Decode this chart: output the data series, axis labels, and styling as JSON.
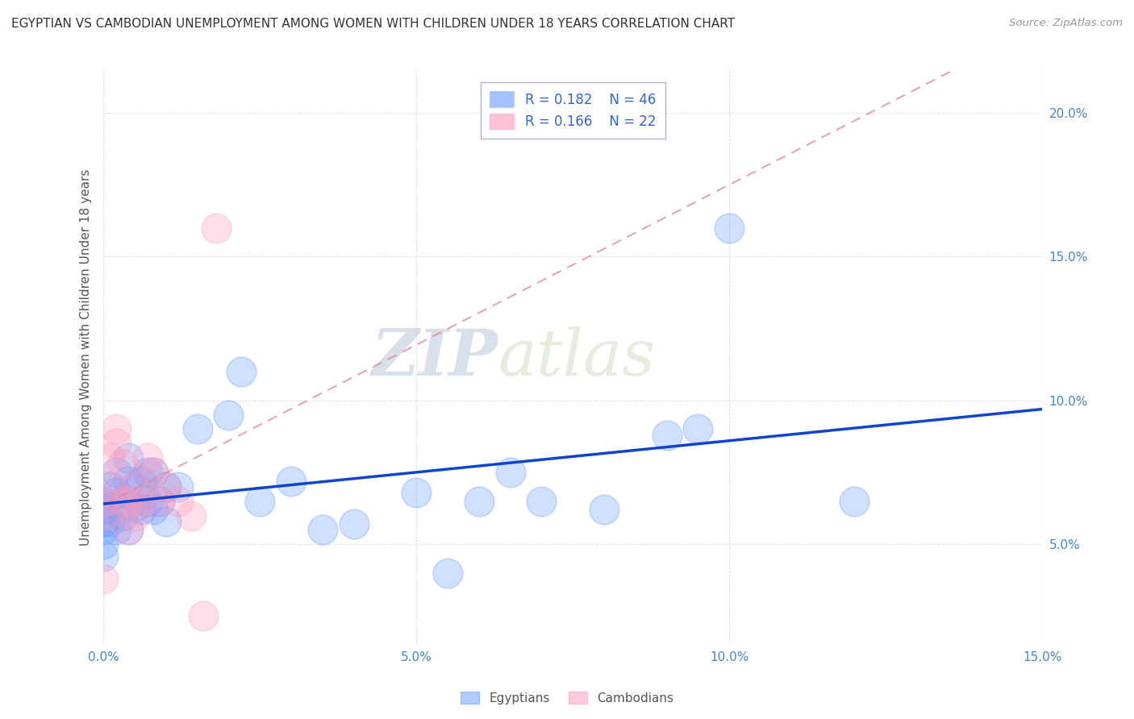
{
  "title": "EGYPTIAN VS CAMBODIAN UNEMPLOYMENT AMONG WOMEN WITH CHILDREN UNDER 18 YEARS CORRELATION CHART",
  "source": "Source: ZipAtlas.com",
  "ylabel": "Unemployment Among Women with Children Under 18 years",
  "xlim": [
    0.0,
    0.15
  ],
  "ylim": [
    0.015,
    0.215
  ],
  "yticks": [
    0.05,
    0.1,
    0.15,
    0.2
  ],
  "ytick_labels": [
    "5.0%",
    "10.0%",
    "15.0%",
    "20.0%"
  ],
  "xticks": [
    0.0,
    0.05,
    0.1,
    0.15
  ],
  "xtick_labels": [
    "0.0%",
    "5.0%",
    "10.0%",
    "15.0%"
  ],
  "legend_bottom": [
    "Egyptians",
    "Cambodians"
  ],
  "egyptians_color": "#6699ff",
  "cambodians_color": "#ff99bb",
  "egyptians_line_color": "#1144cc",
  "cambodians_line_color": "#dd8899",
  "R_egyptians": 0.182,
  "N_egyptians": 46,
  "R_cambodians": 0.166,
  "N_cambodians": 22,
  "watermark_zip": "ZIP",
  "watermark_atlas": "atlas",
  "background_color": "#ffffff",
  "grid_color": "#cccccc",
  "eg_x": [
    0.0,
    0.0,
    0.0,
    0.0,
    0.0,
    0.0,
    0.001,
    0.001,
    0.001,
    0.002,
    0.002,
    0.002,
    0.003,
    0.003,
    0.004,
    0.004,
    0.004,
    0.005,
    0.005,
    0.006,
    0.006,
    0.007,
    0.007,
    0.008,
    0.008,
    0.009,
    0.01,
    0.01,
    0.012,
    0.015,
    0.02,
    0.022,
    0.025,
    0.03,
    0.035,
    0.04,
    0.05,
    0.055,
    0.06,
    0.065,
    0.07,
    0.08,
    0.09,
    0.095,
    0.1,
    0.12
  ],
  "eg_y": [
    0.065,
    0.062,
    0.058,
    0.055,
    0.05,
    0.046,
    0.07,
    0.063,
    0.058,
    0.075,
    0.068,
    0.055,
    0.065,
    0.06,
    0.08,
    0.072,
    0.055,
    0.07,
    0.063,
    0.072,
    0.062,
    0.075,
    0.065,
    0.075,
    0.062,
    0.065,
    0.07,
    0.058,
    0.07,
    0.09,
    0.095,
    0.11,
    0.065,
    0.072,
    0.055,
    0.057,
    0.068,
    0.04,
    0.065,
    0.075,
    0.065,
    0.062,
    0.088,
    0.09,
    0.16,
    0.065
  ],
  "cam_x": [
    0.0,
    0.0,
    0.0,
    0.001,
    0.001,
    0.002,
    0.002,
    0.003,
    0.003,
    0.004,
    0.004,
    0.005,
    0.005,
    0.006,
    0.007,
    0.008,
    0.009,
    0.01,
    0.012,
    0.014,
    0.016,
    0.018
  ],
  "cam_y": [
    0.065,
    0.06,
    0.038,
    0.07,
    0.08,
    0.085,
    0.09,
    0.065,
    0.078,
    0.055,
    0.065,
    0.06,
    0.07,
    0.065,
    0.08,
    0.075,
    0.065,
    0.07,
    0.065,
    0.06,
    0.025,
    0.16
  ],
  "eg_line_x": [
    0.0,
    0.15
  ],
  "eg_line_y": [
    0.06,
    0.085
  ],
  "cam_line_x": [
    0.0,
    0.02
  ],
  "cam_line_y": [
    0.06,
    0.08
  ]
}
